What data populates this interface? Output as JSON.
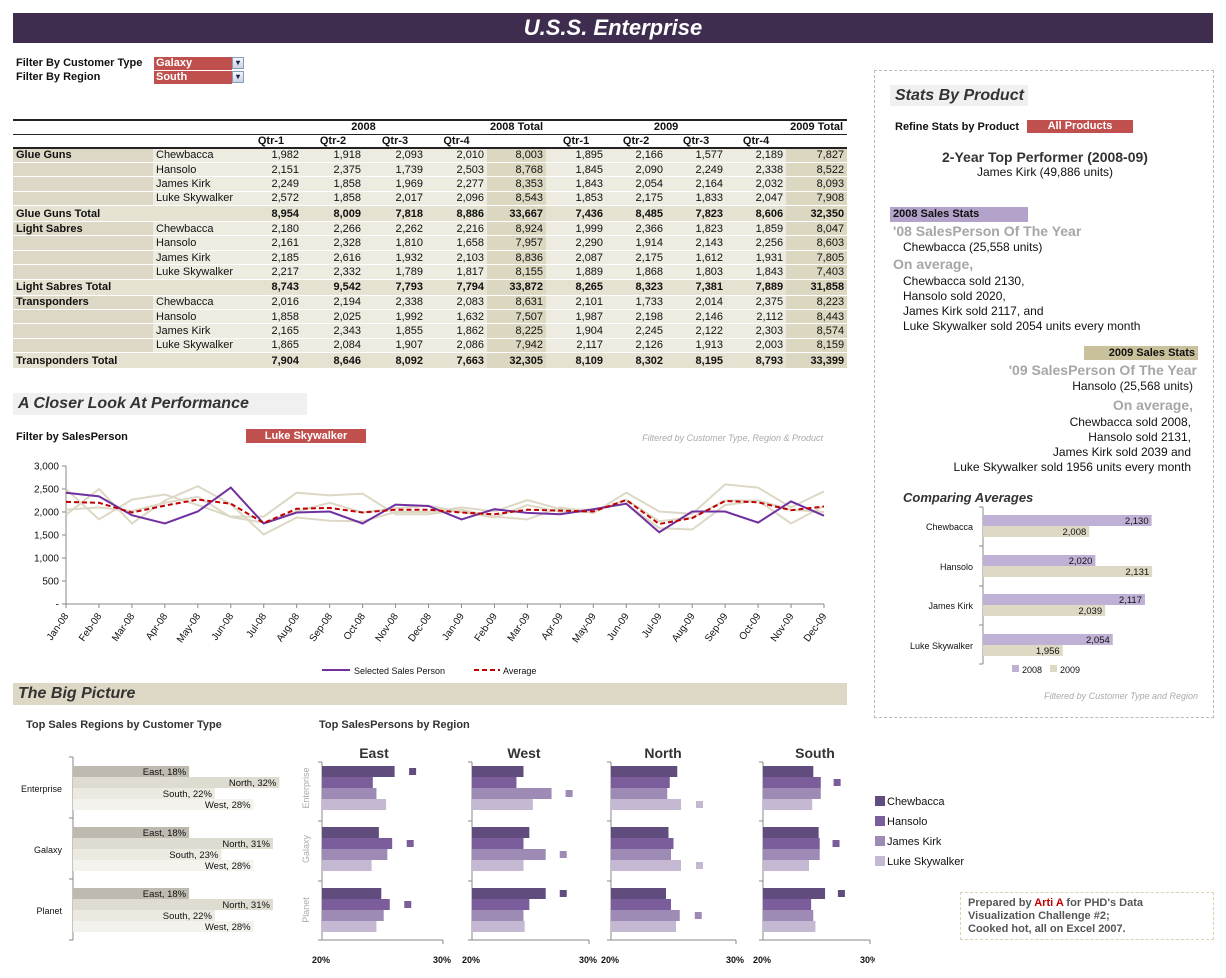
{
  "title": "U.S.S. Enterprise",
  "filters": [
    {
      "label": "Filter By Customer Type",
      "value": "Galaxy"
    },
    {
      "label": "Filter By Region",
      "value": "South"
    }
  ],
  "colors": {
    "title_bar": "#3f2d4f",
    "accent_red": "#c0504d",
    "stats_2008": "#b3a2c9",
    "stats_2009": "#c9c19c",
    "big_picture": "#ddd8c5"
  },
  "table": {
    "year_headers": [
      "2008",
      "2008 Total",
      "2009",
      "2009 Total"
    ],
    "quarters": [
      "Qtr-1",
      "Qtr-2",
      "Qtr-3",
      "Qtr-4"
    ],
    "groups": [
      {
        "product": "Glue Guns",
        "rows": [
          {
            "person": "Chewbacca",
            "values": [
              "1,982",
              "1,918",
              "2,093",
              "2,010",
              "8,003",
              "1,895",
              "2,166",
              "1,577",
              "2,189",
              "7,827"
            ]
          },
          {
            "person": "Hansolo",
            "values": [
              "2,151",
              "2,375",
              "1,739",
              "2,503",
              "8,768",
              "1,845",
              "2,090",
              "2,249",
              "2,338",
              "8,522"
            ]
          },
          {
            "person": "James Kirk",
            "values": [
              "2,249",
              "1,858",
              "1,969",
              "2,277",
              "8,353",
              "1,843",
              "2,054",
              "2,164",
              "2,032",
              "8,093"
            ]
          },
          {
            "person": "Luke Skywalker",
            "values": [
              "2,572",
              "1,858",
              "2,017",
              "2,096",
              "8,543",
              "1,853",
              "2,175",
              "1,833",
              "2,047",
              "7,908"
            ]
          }
        ],
        "total": {
          "label": "Glue Guns Total",
          "values": [
            "8,954",
            "8,009",
            "7,818",
            "8,886",
            "33,667",
            "7,436",
            "8,485",
            "7,823",
            "8,606",
            "32,350"
          ]
        }
      },
      {
        "product": "Light Sabres",
        "rows": [
          {
            "person": "Chewbacca",
            "values": [
              "2,180",
              "2,266",
              "2,262",
              "2,216",
              "8,924",
              "1,999",
              "2,366",
              "1,823",
              "1,859",
              "8,047"
            ]
          },
          {
            "person": "Hansolo",
            "values": [
              "2,161",
              "2,328",
              "1,810",
              "1,658",
              "7,957",
              "2,290",
              "1,914",
              "2,143",
              "2,256",
              "8,603"
            ]
          },
          {
            "person": "James Kirk",
            "values": [
              "2,185",
              "2,616",
              "1,932",
              "2,103",
              "8,836",
              "2,087",
              "2,175",
              "1,612",
              "1,931",
              "7,805"
            ]
          },
          {
            "person": "Luke Skywalker",
            "values": [
              "2,217",
              "2,332",
              "1,789",
              "1,817",
              "8,155",
              "1,889",
              "1,868",
              "1,803",
              "1,843",
              "7,403"
            ]
          }
        ],
        "total": {
          "label": "Light Sabres Total",
          "values": [
            "8,743",
            "9,542",
            "7,793",
            "7,794",
            "33,872",
            "8,265",
            "8,323",
            "7,381",
            "7,889",
            "31,858"
          ]
        }
      },
      {
        "product": "Transponders",
        "rows": [
          {
            "person": "Chewbacca",
            "values": [
              "2,016",
              "2,194",
              "2,338",
              "2,083",
              "8,631",
              "2,101",
              "1,733",
              "2,014",
              "2,375",
              "8,223"
            ]
          },
          {
            "person": "Hansolo",
            "values": [
              "1,858",
              "2,025",
              "1,992",
              "1,632",
              "7,507",
              "1,987",
              "2,198",
              "2,146",
              "2,112",
              "8,443"
            ]
          },
          {
            "person": "James Kirk",
            "values": [
              "2,165",
              "2,343",
              "1,855",
              "1,862",
              "8,225",
              "1,904",
              "2,245",
              "2,122",
              "2,303",
              "8,574"
            ]
          },
          {
            "person": "Luke Skywalker",
            "values": [
              "1,865",
              "2,084",
              "1,907",
              "2,086",
              "7,942",
              "2,117",
              "2,126",
              "1,913",
              "2,003",
              "8,159"
            ]
          }
        ],
        "total": {
          "label": "Transponders Total",
          "values": [
            "7,904",
            "8,646",
            "8,092",
            "7,663",
            "32,305",
            "8,109",
            "8,302",
            "8,195",
            "8,793",
            "33,399"
          ]
        }
      }
    ]
  },
  "performance": {
    "title": "A Closer Look At Performance",
    "filter_label": "Filter by SalesPerson",
    "filter_value": "Luke Skywalker",
    "note": "Filtered by Customer Type, Region & Product"
  },
  "big_picture": {
    "title": "The Big Picture",
    "regions_title": "Top Sales Regions by Customer Type",
    "salespersons_title": "Top SalesPersons by Region",
    "legend": [
      "Chewbacca",
      "Hansolo",
      "James Kirk",
      "Luke Skywalker"
    ]
  },
  "stats": {
    "title": "Stats By Product",
    "refine_label": "Refine Stats by Product",
    "refine_value": "All Products",
    "top_title": "2-Year Top Performer (2008-09)",
    "top_value": "James Kirk (49,886 units)",
    "y2008": {
      "header": "2008 Sales Stats",
      "spoty_title": "'08 SalesPerson Of The Year",
      "spoty_value": "Chewbacca (25,558 units)",
      "avg_title": "On average,",
      "avg_lines": [
        "Chewbacca sold 2130,",
        "Hansolo sold 2020,",
        "James Kirk sold 2117, and",
        "Luke Skywalker sold 2054 units every month"
      ]
    },
    "y2009": {
      "header": "2009 Sales Stats",
      "spoty_title": "'09 SalesPerson Of The Year",
      "spoty_value": "Hansolo (25,568 units)",
      "avg_title": "On average,",
      "avg_lines": [
        "Chewbacca sold 2008,",
        "Hansolo sold 2131,",
        "James Kirk sold 2039 and",
        "Luke Skywalker sold 1956 units every month"
      ]
    },
    "compare_title": "Comparing Averages",
    "compare_note": "Filtered by Customer Type and Region"
  },
  "prepared": {
    "pre": "Prepared  by ",
    "author": "Arti A",
    "post": " for PHD's Data Visualization Challenge #2;",
    "line2": "Cooked hot, all on Excel 2007."
  },
  "chart_data": [
    {
      "type": "line",
      "x": [
        "Jan-08",
        "Feb-08",
        "Mar-08",
        "Apr-08",
        "May-08",
        "Jun-08",
        "Jul-08",
        "Aug-08",
        "Sep-08",
        "Oct-08",
        "Nov-08",
        "Dec-08",
        "Jan-09",
        "Feb-09",
        "Mar-09",
        "Apr-09",
        "May-09",
        "Jun-09",
        "Jul-09",
        "Aug-09",
        "Sep-09",
        "Oct-09",
        "Nov-09",
        "Dec-09"
      ],
      "yticks": [
        "-",
        "500",
        "1,000",
        "1,500",
        "2,000",
        "2,500",
        "3,000"
      ],
      "ylim": [
        0,
        3000
      ],
      "grid": false,
      "legend": "bottom",
      "series": [
        {
          "values": [
            2500,
            1840,
            2270,
            2380,
            2150,
            1900,
            1900,
            2420,
            2360,
            2400,
            1950,
            1950,
            2050,
            1900,
            1840,
            2100,
            1980,
            2420,
            2010,
            1960,
            2600,
            2530,
            2100,
            2450
          ],
          "color": "#ddd8c5"
        },
        {
          "values": [
            1940,
            2500,
            1750,
            2250,
            2560,
            2170,
            1510,
            1880,
            1810,
            1800,
            2000,
            2000,
            2100,
            2010,
            2260,
            2060,
            2050,
            2180,
            1650,
            1620,
            2150,
            2250,
            1750,
            2130
          ],
          "color": "#ddd8c5"
        },
        {
          "values": [
            2050,
            2100,
            2020,
            2200,
            2330,
            1890,
            1770,
            2010,
            2200,
            1990,
            2080,
            2140,
            2000,
            1880,
            2150,
            2000,
            2000,
            2270,
            1800,
            1880,
            2250,
            2250,
            2050,
            2000
          ],
          "color": "#ddd8c5"
        },
        {
          "name": "Selected Sales Person",
          "values": [
            2420,
            2340,
            1930,
            1750,
            2010,
            2530,
            1750,
            1990,
            2010,
            1750,
            2160,
            2130,
            1840,
            2060,
            1980,
            1950,
            2060,
            2180,
            1560,
            2010,
            2010,
            1770,
            2230,
            1920
          ],
          "color": "#7030a0"
        },
        {
          "name": "Average",
          "values": [
            2220,
            2200,
            1990,
            2140,
            2270,
            2180,
            1760,
            2070,
            2090,
            1990,
            2050,
            2050,
            1990,
            1950,
            2050,
            2030,
            2010,
            2260,
            1740,
            1870,
            2240,
            2210,
            2040,
            2120
          ],
          "color": "#c00000",
          "dashed": true
        }
      ]
    },
    {
      "type": "bar",
      "orientation": "horizontal",
      "title": "Comparing Averages",
      "categories": [
        "Chewbacca",
        "Hansolo",
        "James Kirk",
        "Luke Skywalker"
      ],
      "series": [
        {
          "name": "2008",
          "values": [
            2130,
            2020,
            2117,
            2054
          ],
          "labels": [
            "2,130",
            "2,020",
            "2,117",
            "2,054"
          ],
          "color": "#bfb1d5"
        },
        {
          "name": "2009",
          "values": [
            2008,
            2131,
            2039,
            1956
          ],
          "labels": [
            "2,008",
            "2,131",
            "2,039",
            "1,956"
          ],
          "color": "#ddd9c4"
        }
      ],
      "xlim": [
        1800,
        2150
      ],
      "legend": "bottom"
    },
    {
      "type": "bar",
      "orientation": "horizontal",
      "title": "Top Sales Regions by Customer Type",
      "categories": [
        "Enterprise",
        "Galaxy",
        "Planet"
      ],
      "series": [
        {
          "name": "East",
          "values": [
            18,
            18,
            18
          ],
          "color": "#bfbab0"
        },
        {
          "name": "North",
          "values": [
            32,
            31,
            31
          ],
          "color": "#dedbd0"
        },
        {
          "name": "South",
          "values": [
            22,
            23,
            22
          ],
          "color": "#ebe9e0"
        },
        {
          "name": "West",
          "values": [
            28,
            28,
            28
          ],
          "color": "#f3f2ec"
        }
      ],
      "unit": "%"
    },
    {
      "type": "bar",
      "orientation": "horizontal",
      "title": "Top SalesPersons by Region",
      "categories": [
        "Enterprise",
        "Galaxy",
        "Planet"
      ],
      "xlim": [
        20,
        30
      ],
      "xticks": [
        "20%",
        "30%"
      ],
      "series_names": [
        "Chewbacca",
        "Hansolo",
        "James Kirk",
        "Luke Skywalker"
      ],
      "series_colors": [
        "#614c7e",
        "#7b5d9b",
        "#9d8bb5",
        "#c4b8d3"
      ],
      "panels": [
        {
          "region": "East",
          "values": [
            [
              26.0,
              24.2,
              24.5,
              25.3
            ],
            [
              24.7,
              25.8,
              25.4,
              24.1
            ],
            [
              24.9,
              25.6,
              25.1,
              24.5
            ]
          ]
        },
        {
          "region": "West",
          "values": [
            [
              24.4,
              23.8,
              26.8,
              25.2
            ],
            [
              24.9,
              24.4,
              26.3,
              24.4
            ],
            [
              26.3,
              24.9,
              24.4,
              24.5
            ]
          ]
        },
        {
          "region": "North",
          "values": [
            [
              25.3,
              24.7,
              24.5,
              25.6
            ],
            [
              24.6,
              25.0,
              24.8,
              25.6
            ],
            [
              24.4,
              24.8,
              25.5,
              25.2
            ]
          ]
        },
        {
          "region": "South",
          "values": [
            [
              24.7,
              25.4,
              25.4,
              24.6
            ],
            [
              25.2,
              25.3,
              25.3,
              24.3
            ],
            [
              25.8,
              24.5,
              24.7,
              24.9
            ]
          ]
        }
      ]
    }
  ]
}
